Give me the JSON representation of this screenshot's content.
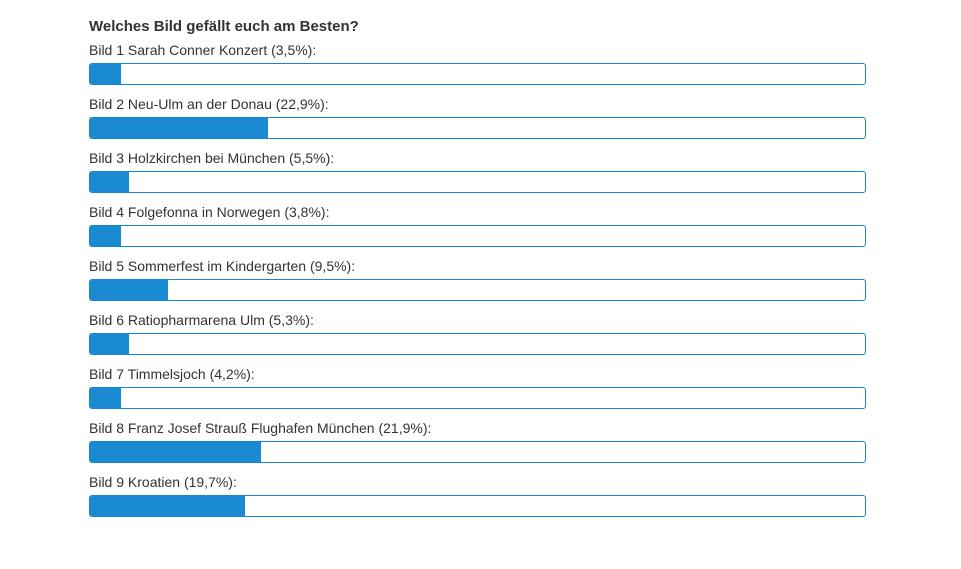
{
  "poll": {
    "title": "Welches Bild gefällt euch am Besten?",
    "accent_color": "#1a8bd3",
    "options": [
      {
        "label": "Bild 1 Sarah Conner Konzert (3,5%):",
        "percent": 3.5,
        "bar_percent": 4.0
      },
      {
        "label": "Bild 2 Neu-Ulm an der Donau (22,9%):",
        "percent": 22.9,
        "bar_percent": 23.0
      },
      {
        "label": "Bild 3 Holzkirchen bei München (5,5%):",
        "percent": 5.5,
        "bar_percent": 5.0
      },
      {
        "label": "Bild 4 Folgefonna in Norwegen (3,8%):",
        "percent": 3.8,
        "bar_percent": 4.0
      },
      {
        "label": "Bild 5 Sommerfest im Kindergarten (9,5%):",
        "percent": 9.5,
        "bar_percent": 10.0
      },
      {
        "label": "Bild 6 Ratiopharmarena Ulm (5,3%):",
        "percent": 5.3,
        "bar_percent": 5.0
      },
      {
        "label": "Bild 7 Timmelsjoch (4,2%):",
        "percent": 4.2,
        "bar_percent": 4.0
      },
      {
        "label": "Bild 8 Franz Josef Strauß Flughafen München (21,9%):",
        "percent": 21.9,
        "bar_percent": 22.0
      },
      {
        "label": "Bild 9 Kroatien (19,7%):",
        "percent": 19.7,
        "bar_percent": 20.0
      }
    ]
  }
}
